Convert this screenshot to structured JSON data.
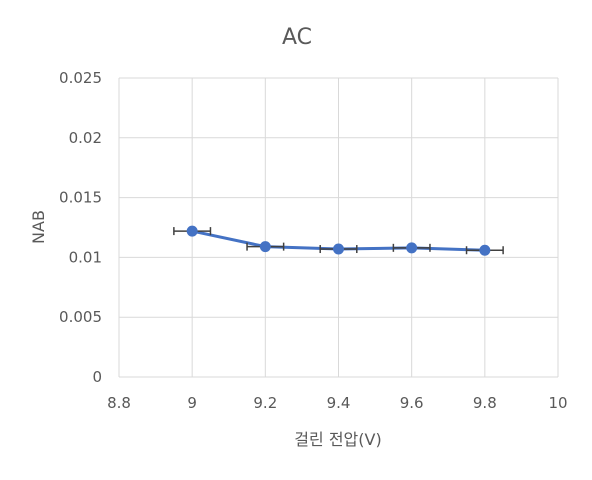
{
  "chart_data": {
    "type": "scatter",
    "title": "AC",
    "xlabel": "걸린 전압(V)",
    "ylabel": "NAB",
    "xlim": [
      8.8,
      10
    ],
    "ylim": [
      0,
      0.025
    ],
    "x_ticks": [
      "8.8",
      "9",
      "9.2",
      "9.4",
      "9.6",
      "9.8",
      "10"
    ],
    "y_ticks": [
      "0",
      "0.005",
      "0.01",
      "0.015",
      "0.02",
      "0.025"
    ],
    "grid": true,
    "legend": "none",
    "series_color": "#4472c4",
    "series": [
      {
        "points": [
          {
            "x": 9.0,
            "y": 0.0122,
            "xerr": 0.05
          },
          {
            "x": 9.2,
            "y": 0.0109,
            "xerr": 0.05
          },
          {
            "x": 9.4,
            "y": 0.0107,
            "xerr": 0.05
          },
          {
            "x": 9.6,
            "y": 0.0108,
            "xerr": 0.05
          },
          {
            "x": 9.8,
            "y": 0.0106,
            "xerr": 0.05
          }
        ]
      }
    ]
  }
}
